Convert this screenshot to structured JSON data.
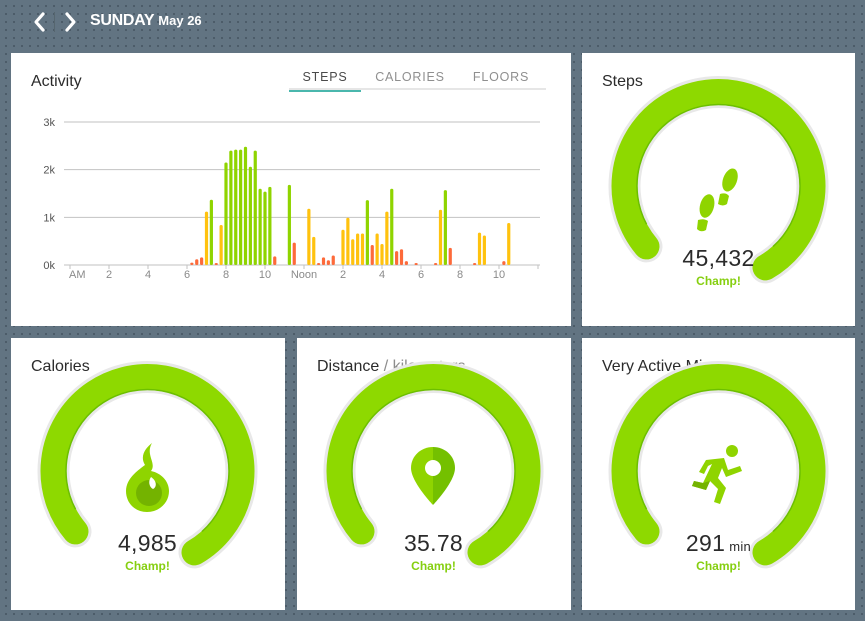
{
  "header": {
    "day": "SUNDAY",
    "date": "May 26",
    "prev_label": "previous-day",
    "next_label": "next-day"
  },
  "activity": {
    "title": "Activity",
    "tabs": [
      {
        "label": "STEPS",
        "active": true
      },
      {
        "label": "CALORIES",
        "active": false
      },
      {
        "label": "FLOORS",
        "active": false
      }
    ]
  },
  "colors": {
    "accent_green": "#8fd400",
    "yellow": "#ffc20e",
    "orange": "#fd6a3a",
    "tab_underline": "#4ab7ad",
    "background": "#627482"
  },
  "chart_data": {
    "type": "bar",
    "title": "Activity",
    "metric": "Steps",
    "xlabel": "",
    "ylabel": "",
    "ylim": [
      0,
      3000
    ],
    "y_ticks": [
      {
        "value": 0,
        "label": "0k"
      },
      {
        "value": 1000,
        "label": "1k"
      },
      {
        "value": 2000,
        "label": "2k"
      },
      {
        "value": 3000,
        "label": "3k"
      }
    ],
    "x_range_hours": [
      0,
      24
    ],
    "x_ticks": [
      {
        "hour": 0,
        "label": "AM"
      },
      {
        "hour": 2,
        "label": "2"
      },
      {
        "hour": 4,
        "label": "4"
      },
      {
        "hour": 6,
        "label": "6"
      },
      {
        "hour": 8,
        "label": "8"
      },
      {
        "hour": 10,
        "label": "10"
      },
      {
        "hour": 12,
        "label": "Noon"
      },
      {
        "hour": 14,
        "label": "2"
      },
      {
        "hour": 16,
        "label": "4"
      },
      {
        "hour": 18,
        "label": "6"
      },
      {
        "hour": 20,
        "label": "8"
      },
      {
        "hour": 22,
        "label": "10"
      }
    ],
    "grid": true,
    "interval_minutes": 15,
    "bars": [
      {
        "hour": 6.25,
        "steps": 50,
        "level": "low"
      },
      {
        "hour": 6.5,
        "steps": 120,
        "level": "low"
      },
      {
        "hour": 6.75,
        "steps": 160,
        "level": "low"
      },
      {
        "hour": 7.0,
        "steps": 1120,
        "level": "medium"
      },
      {
        "hour": 7.25,
        "steps": 1370,
        "level": "high"
      },
      {
        "hour": 7.5,
        "steps": 30,
        "level": "low"
      },
      {
        "hour": 7.75,
        "steps": 840,
        "level": "medium"
      },
      {
        "hour": 8.0,
        "steps": 2150,
        "level": "high"
      },
      {
        "hour": 8.25,
        "steps": 2400,
        "level": "high"
      },
      {
        "hour": 8.5,
        "steps": 2420,
        "level": "high"
      },
      {
        "hour": 8.75,
        "steps": 2420,
        "level": "high"
      },
      {
        "hour": 9.0,
        "steps": 2480,
        "level": "high"
      },
      {
        "hour": 9.25,
        "steps": 2060,
        "level": "high"
      },
      {
        "hour": 9.5,
        "steps": 2400,
        "level": "high"
      },
      {
        "hour": 9.75,
        "steps": 1600,
        "level": "high"
      },
      {
        "hour": 10.0,
        "steps": 1540,
        "level": "high"
      },
      {
        "hour": 10.25,
        "steps": 1640,
        "level": "high"
      },
      {
        "hour": 10.5,
        "steps": 180,
        "level": "low"
      },
      {
        "hour": 11.25,
        "steps": 1680,
        "level": "high"
      },
      {
        "hour": 11.5,
        "steps": 470,
        "level": "low"
      },
      {
        "hour": 12.25,
        "steps": 1180,
        "level": "medium"
      },
      {
        "hour": 12.5,
        "steps": 590,
        "level": "medium"
      },
      {
        "hour": 12.75,
        "steps": 30,
        "level": "low"
      },
      {
        "hour": 13.0,
        "steps": 160,
        "level": "low"
      },
      {
        "hour": 13.25,
        "steps": 100,
        "level": "low"
      },
      {
        "hour": 13.5,
        "steps": 200,
        "level": "low"
      },
      {
        "hour": 14.0,
        "steps": 740,
        "level": "medium"
      },
      {
        "hour": 14.25,
        "steps": 990,
        "level": "medium"
      },
      {
        "hour": 14.5,
        "steps": 540,
        "level": "medium"
      },
      {
        "hour": 14.75,
        "steps": 660,
        "level": "medium"
      },
      {
        "hour": 15.0,
        "steps": 660,
        "level": "medium"
      },
      {
        "hour": 15.25,
        "steps": 1360,
        "level": "high"
      },
      {
        "hour": 15.5,
        "steps": 420,
        "level": "low"
      },
      {
        "hour": 15.75,
        "steps": 660,
        "level": "medium"
      },
      {
        "hour": 16.0,
        "steps": 440,
        "level": "medium"
      },
      {
        "hour": 16.25,
        "steps": 1120,
        "level": "medium"
      },
      {
        "hour": 16.5,
        "steps": 1600,
        "level": "high"
      },
      {
        "hour": 16.75,
        "steps": 290,
        "level": "low"
      },
      {
        "hour": 17.0,
        "steps": 330,
        "level": "low"
      },
      {
        "hour": 17.25,
        "steps": 80,
        "level": "low"
      },
      {
        "hour": 17.75,
        "steps": 30,
        "level": "low"
      },
      {
        "hour": 18.75,
        "steps": 30,
        "level": "low"
      },
      {
        "hour": 19.0,
        "steps": 1160,
        "level": "medium"
      },
      {
        "hour": 19.25,
        "steps": 1570,
        "level": "high"
      },
      {
        "hour": 19.5,
        "steps": 360,
        "level": "low"
      },
      {
        "hour": 20.75,
        "steps": 10,
        "level": "low"
      },
      {
        "hour": 21.0,
        "steps": 680,
        "level": "medium"
      },
      {
        "hour": 21.25,
        "steps": 620,
        "level": "medium"
      },
      {
        "hour": 22.25,
        "steps": 80,
        "level": "low"
      },
      {
        "hour": 22.5,
        "steps": 880,
        "level": "medium"
      }
    ]
  },
  "tiles": {
    "steps": {
      "title": "Steps",
      "subtitle": "",
      "value": "45,432",
      "unit": "",
      "status": "Champ!",
      "icon": "footsteps-icon",
      "goal_progress": 1.0
    },
    "calories": {
      "title": "Calories",
      "subtitle": "",
      "value": "4,985",
      "unit": "",
      "status": "Champ!",
      "icon": "flame-icon",
      "goal_progress": 1.0
    },
    "distance": {
      "title": "Distance",
      "subtitle": " / kilometers",
      "value": "35.78",
      "unit": "",
      "status": "Champ!",
      "icon": "map-pin-icon",
      "goal_progress": 1.0
    },
    "active": {
      "title": "Very Active Mins",
      "subtitle": "",
      "value": "291",
      "unit": "min",
      "status": "Champ!",
      "icon": "runner-icon",
      "goal_progress": 1.0
    }
  }
}
